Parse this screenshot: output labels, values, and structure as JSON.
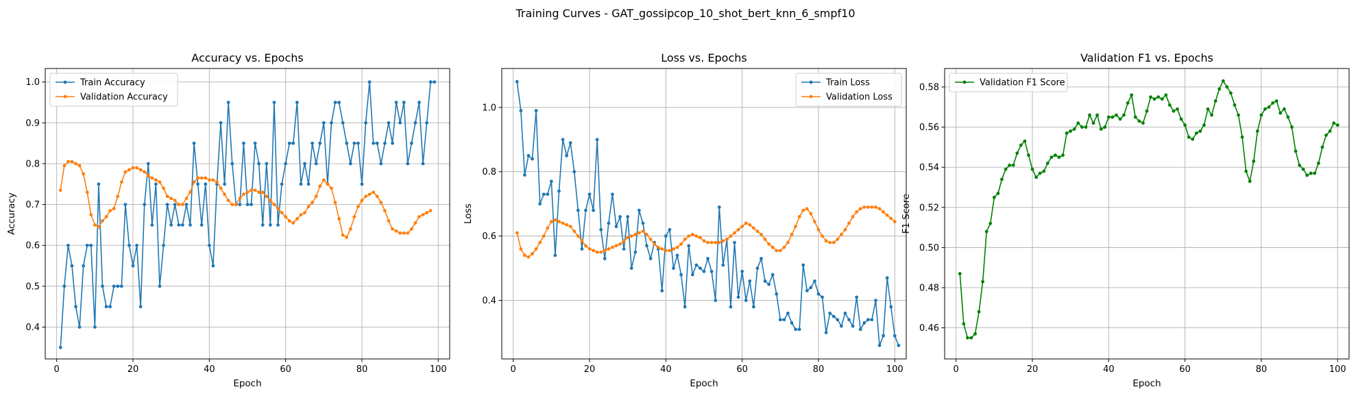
{
  "figure": {
    "suptitle": "Training Curves - GAT_gossipcop_10_shot_bert_knn_6_smpf10"
  },
  "colors": {
    "blue": "#1f77b4",
    "orange": "#ff7f0e",
    "green": "#008000"
  },
  "chart_data": [
    {
      "type": "line",
      "title": "Accuracy vs. Epochs",
      "xlabel": "Epoch",
      "ylabel": "Accuracy",
      "xlim": [
        -3,
        103
      ],
      "ylim": [
        0.322,
        1.033
      ],
      "xticks": [
        0,
        20,
        40,
        60,
        80,
        100
      ],
      "yticks": [
        0.4,
        0.5,
        0.6,
        0.7,
        0.8,
        0.9,
        1.0
      ],
      "ytick_labels": [
        "0.4",
        "0.5",
        "0.6",
        "0.7",
        "0.8",
        "0.9",
        "1.0"
      ],
      "grid": true,
      "legend_position": "upper-left",
      "series": [
        {
          "name": "Train Accuracy",
          "color": "#1f77b4",
          "values": [
            0.35,
            0.5,
            0.6,
            0.55,
            0.45,
            0.4,
            0.55,
            0.6,
            0.6,
            0.4,
            0.75,
            0.5,
            0.45,
            0.45,
            0.5,
            0.5,
            0.5,
            0.7,
            0.6,
            0.55,
            0.6,
            0.45,
            0.7,
            0.8,
            0.65,
            0.75,
            0.5,
            0.6,
            0.7,
            0.65,
            0.7,
            0.65,
            0.65,
            0.7,
            0.65,
            0.85,
            0.75,
            0.65,
            0.75,
            0.6,
            0.55,
            0.75,
            0.9,
            0.75,
            0.95,
            0.8,
            0.7,
            0.7,
            0.85,
            0.7,
            0.7,
            0.85,
            0.8,
            0.65,
            0.8,
            0.65,
            0.95,
            0.65,
            0.75,
            0.8,
            0.85,
            0.85,
            0.95,
            0.75,
            0.8,
            0.75,
            0.85,
            0.8,
            0.85,
            0.9,
            0.75,
            0.9,
            0.95,
            0.95,
            0.9,
            0.85,
            0.8,
            0.85,
            0.85,
            0.75,
            0.9,
            1.0,
            0.85,
            0.85,
            0.8,
            0.85,
            0.9,
            0.85,
            0.95,
            0.9,
            0.95,
            0.8,
            0.85,
            0.9,
            0.95,
            0.8,
            0.9,
            1.0,
            1.0
          ]
        },
        {
          "name": "Validation Accuracy",
          "color": "#ff7f0e",
          "values": [
            0.735,
            0.795,
            0.805,
            0.805,
            0.8,
            0.795,
            0.775,
            0.73,
            0.675,
            0.65,
            0.645,
            0.66,
            0.67,
            0.685,
            0.69,
            0.72,
            0.755,
            0.78,
            0.785,
            0.79,
            0.79,
            0.785,
            0.78,
            0.77,
            0.765,
            0.76,
            0.755,
            0.74,
            0.72,
            0.715,
            0.71,
            0.7,
            0.7,
            0.715,
            0.73,
            0.755,
            0.765,
            0.765,
            0.765,
            0.76,
            0.76,
            0.755,
            0.74,
            0.725,
            0.71,
            0.7,
            0.7,
            0.715,
            0.725,
            0.73,
            0.735,
            0.735,
            0.73,
            0.73,
            0.72,
            0.71,
            0.7,
            0.69,
            0.68,
            0.67,
            0.66,
            0.655,
            0.665,
            0.675,
            0.68,
            0.695,
            0.705,
            0.72,
            0.745,
            0.76,
            0.75,
            0.74,
            0.705,
            0.665,
            0.625,
            0.62,
            0.64,
            0.67,
            0.695,
            0.71,
            0.72,
            0.725,
            0.73,
            0.72,
            0.705,
            0.685,
            0.66,
            0.64,
            0.635,
            0.63,
            0.63,
            0.63,
            0.64,
            0.655,
            0.67,
            0.675,
            0.68,
            0.685
          ]
        }
      ]
    },
    {
      "type": "line",
      "title": "Loss vs. Epochs",
      "xlabel": "Epoch",
      "ylabel": "Loss",
      "xlim": [
        -3,
        103
      ],
      "ylim": [
        0.218,
        1.121
      ],
      "xticks": [
        0,
        20,
        40,
        60,
        80,
        100
      ],
      "yticks": [
        0.4,
        0.6,
        0.8,
        1.0
      ],
      "ytick_labels": [
        "0.4",
        "0.6",
        "0.8",
        "1.0"
      ],
      "grid": true,
      "legend_position": "upper-right",
      "series": [
        {
          "name": "Train Loss",
          "color": "#1f77b4",
          "values": [
            1.08,
            0.99,
            0.79,
            0.85,
            0.84,
            0.99,
            0.7,
            0.73,
            0.73,
            0.77,
            0.54,
            0.74,
            0.9,
            0.85,
            0.89,
            0.8,
            0.68,
            0.56,
            0.68,
            0.73,
            0.68,
            0.9,
            0.62,
            0.53,
            0.64,
            0.73,
            0.63,
            0.66,
            0.56,
            0.66,
            0.5,
            0.55,
            0.68,
            0.64,
            0.57,
            0.53,
            0.58,
            0.56,
            0.43,
            0.6,
            0.62,
            0.5,
            0.54,
            0.48,
            0.38,
            0.57,
            0.48,
            0.51,
            0.5,
            0.49,
            0.53,
            0.49,
            0.4,
            0.69,
            0.51,
            0.59,
            0.38,
            0.58,
            0.41,
            0.49,
            0.4,
            0.46,
            0.38,
            0.5,
            0.53,
            0.46,
            0.45,
            0.48,
            0.42,
            0.34,
            0.34,
            0.36,
            0.33,
            0.31,
            0.31,
            0.51,
            0.43,
            0.44,
            0.46,
            0.42,
            0.41,
            0.3,
            0.36,
            0.35,
            0.34,
            0.32,
            0.36,
            0.34,
            0.32,
            0.41,
            0.31,
            0.33,
            0.34,
            0.34,
            0.4,
            0.26,
            0.29,
            0.47,
            0.38,
            0.29,
            0.26
          ]
        },
        {
          "name": "Validation Loss",
          "color": "#ff7f0e",
          "values": [
            0.61,
            0.56,
            0.54,
            0.535,
            0.545,
            0.56,
            0.58,
            0.6,
            0.625,
            0.645,
            0.65,
            0.645,
            0.64,
            0.635,
            0.63,
            0.615,
            0.6,
            0.585,
            0.57,
            0.56,
            0.555,
            0.55,
            0.55,
            0.555,
            0.56,
            0.565,
            0.57,
            0.575,
            0.585,
            0.595,
            0.6,
            0.605,
            0.61,
            0.615,
            0.605,
            0.59,
            0.575,
            0.565,
            0.56,
            0.555,
            0.555,
            0.56,
            0.565,
            0.575,
            0.59,
            0.6,
            0.605,
            0.6,
            0.595,
            0.585,
            0.58,
            0.58,
            0.58,
            0.58,
            0.585,
            0.59,
            0.6,
            0.61,
            0.62,
            0.63,
            0.64,
            0.635,
            0.625,
            0.615,
            0.605,
            0.59,
            0.575,
            0.565,
            0.555,
            0.555,
            0.565,
            0.58,
            0.605,
            0.63,
            0.66,
            0.68,
            0.685,
            0.67,
            0.645,
            0.62,
            0.6,
            0.585,
            0.58,
            0.58,
            0.59,
            0.605,
            0.62,
            0.64,
            0.66,
            0.675,
            0.685,
            0.69,
            0.69,
            0.69,
            0.69,
            0.685,
            0.675,
            0.665,
            0.655,
            0.645
          ]
        }
      ]
    },
    {
      "type": "line",
      "title": "Validation F1 vs. Epochs",
      "xlabel": "Epoch",
      "ylabel": "F1 Score",
      "xlim": [
        -3,
        103
      ],
      "ylim": [
        0.4445,
        0.5892
      ],
      "xticks": [
        0,
        20,
        40,
        60,
        80,
        100
      ],
      "yticks": [
        0.46,
        0.48,
        0.5,
        0.52,
        0.54,
        0.56,
        0.58
      ],
      "ytick_labels": [
        "0.46",
        "0.48",
        "0.50",
        "0.52",
        "0.54",
        "0.56",
        "0.58"
      ],
      "grid": true,
      "legend_position": "upper-left",
      "series": [
        {
          "name": "Validation F1 Score",
          "color": "#008000",
          "values": [
            0.487,
            0.462,
            0.455,
            0.455,
            0.457,
            0.468,
            0.483,
            0.508,
            0.512,
            0.525,
            0.527,
            0.534,
            0.539,
            0.541,
            0.541,
            0.547,
            0.551,
            0.553,
            0.546,
            0.539,
            0.535,
            0.537,
            0.538,
            0.542,
            0.545,
            0.546,
            0.545,
            0.546,
            0.557,
            0.558,
            0.559,
            0.562,
            0.56,
            0.56,
            0.566,
            0.562,
            0.566,
            0.559,
            0.56,
            0.565,
            0.565,
            0.566,
            0.564,
            0.566,
            0.572,
            0.576,
            0.565,
            0.563,
            0.562,
            0.568,
            0.575,
            0.574,
            0.575,
            0.574,
            0.576,
            0.571,
            0.568,
            0.569,
            0.564,
            0.561,
            0.555,
            0.554,
            0.557,
            0.558,
            0.561,
            0.569,
            0.566,
            0.573,
            0.579,
            0.583,
            0.58,
            0.577,
            0.571,
            0.566,
            0.555,
            0.538,
            0.533,
            0.543,
            0.558,
            0.566,
            0.569,
            0.57,
            0.572,
            0.573,
            0.567,
            0.569,
            0.565,
            0.56,
            0.548,
            0.541,
            0.539,
            0.536,
            0.537,
            0.537,
            0.542,
            0.55,
            0.556,
            0.558,
            0.562,
            0.561
          ]
        }
      ]
    }
  ]
}
